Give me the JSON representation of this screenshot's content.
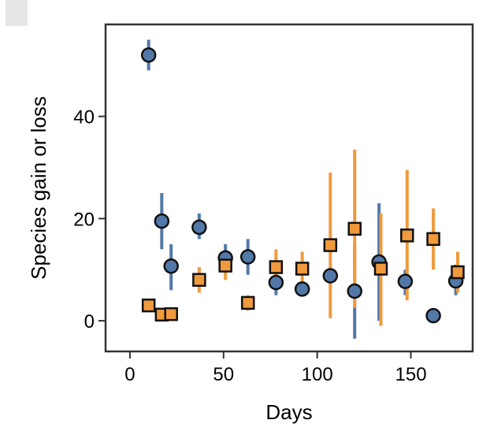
{
  "chart_data": {
    "type": "scatter",
    "xlabel": "Days",
    "ylabel": "Species gain or loss",
    "xlim": [
      -13,
      183
    ],
    "ylim": [
      -6,
      58
    ],
    "xticks": [
      0,
      50,
      100,
      150
    ],
    "yticks": [
      0,
      20,
      40
    ],
    "grid": false,
    "legend": "none",
    "series": [
      {
        "marker": "circle",
        "color": "#5278A8",
        "points": [
          {
            "x": 10,
            "y": 52,
            "low": 49,
            "high": 55
          },
          {
            "x": 17,
            "y": 19.5,
            "low": 14,
            "high": 25
          },
          {
            "x": 22,
            "y": 10.7,
            "low": 6,
            "high": 15
          },
          {
            "x": 37,
            "y": 18.3,
            "low": 16,
            "high": 21
          },
          {
            "x": 51,
            "y": 12.3,
            "low": 9,
            "high": 15
          },
          {
            "x": 63,
            "y": 12.5,
            "low": 9,
            "high": 16
          },
          {
            "x": 78,
            "y": 7.5,
            "low": 5,
            "high": 10
          },
          {
            "x": 92,
            "y": 6.2,
            "low": 5,
            "high": 7.5
          },
          {
            "x": 107,
            "y": 8.8,
            "low": 7,
            "high": 10
          },
          {
            "x": 120,
            "y": 5.8,
            "low": -3.5,
            "high": 15
          },
          {
            "x": 133,
            "y": 11.5,
            "low": 0,
            "high": 23
          },
          {
            "x": 147,
            "y": 7.7,
            "low": 5,
            "high": 10
          },
          {
            "x": 162,
            "y": 1,
            "low": 0,
            "high": 2
          },
          {
            "x": 174,
            "y": 7.8,
            "low": 5,
            "high": 11
          }
        ]
      },
      {
        "marker": "square",
        "color": "#F09A3C",
        "points": [
          {
            "x": 10,
            "y": 3,
            "low": 2,
            "high": 4
          },
          {
            "x": 17,
            "y": 1.2,
            "low": 0.5,
            "high": 2
          },
          {
            "x": 22,
            "y": 1.3,
            "low": 0.5,
            "high": 2
          },
          {
            "x": 37,
            "y": 8,
            "low": 5.5,
            "high": 10.5
          },
          {
            "x": 51,
            "y": 10.8,
            "low": 8,
            "high": 13.5
          },
          {
            "x": 63,
            "y": 3.5,
            "low": 2,
            "high": 5
          },
          {
            "x": 78,
            "y": 10.5,
            "low": 7,
            "high": 14
          },
          {
            "x": 92,
            "y": 10.2,
            "low": 7,
            "high": 13.5
          },
          {
            "x": 107,
            "y": 14.8,
            "low": 0.5,
            "high": 29
          },
          {
            "x": 120,
            "y": 18,
            "low": 2.5,
            "high": 33.5
          },
          {
            "x": 134,
            "y": 10.2,
            "low": -1,
            "high": 21
          },
          {
            "x": 148,
            "y": 16.7,
            "low": 4,
            "high": 29.5
          },
          {
            "x": 162,
            "y": 16,
            "low": 10,
            "high": 22
          },
          {
            "x": 175,
            "y": 9.5,
            "low": 5.5,
            "high": 13.5
          }
        ]
      }
    ]
  }
}
